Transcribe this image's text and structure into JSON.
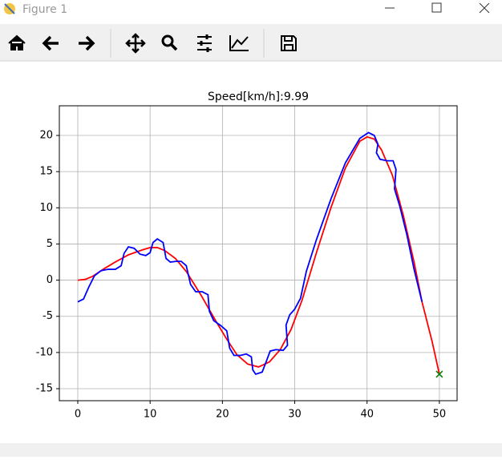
{
  "window": {
    "title": "Figure 1"
  },
  "chart_data": {
    "type": "line",
    "title": "Speed[km/h]:9.99",
    "xlim": [
      -2.55,
      52.45
    ],
    "ylim": [
      -16.66,
      24.1
    ],
    "xticks": [
      0,
      10,
      20,
      30,
      40,
      50
    ],
    "yticks": [
      -15,
      -10,
      -5,
      0,
      5,
      10,
      15,
      20
    ],
    "grid": true,
    "series": [
      {
        "color": "#ff0000",
        "x": [
          0,
          1,
          2,
          3.5,
          5,
          7,
          9,
          10,
          11,
          12,
          13.5,
          15,
          17,
          19,
          20.5,
          22,
          23.5,
          25,
          26.5,
          28,
          29.5,
          31,
          33,
          35,
          37,
          39,
          40,
          41,
          42,
          43.5,
          45,
          46.5,
          47.6,
          49,
          50
        ],
        "values": [
          0,
          0.1,
          0.5,
          1.5,
          2.4,
          3.5,
          4.2,
          4.5,
          4.5,
          4.1,
          3,
          1.2,
          -2,
          -5.5,
          -8,
          -10.3,
          -11.6,
          -12,
          -11.3,
          -9.6,
          -6.8,
          -2.8,
          3.8,
          10,
          15.5,
          19.2,
          19.8,
          19.5,
          18,
          14.5,
          9,
          2.5,
          -3,
          -8.5,
          -13
        ]
      },
      {
        "color": "#0000ff",
        "x": [
          0,
          0.8,
          1.5,
          2.3,
          3.2,
          4.2,
          5.2,
          6,
          6.4,
          7,
          7.8,
          8.6,
          9.4,
          10,
          10.4,
          11,
          11.8,
          12.2,
          12.8,
          13.6,
          14.3,
          15,
          15.3,
          15.6,
          16.3,
          17.2,
          18,
          18.2,
          18.8,
          19.8,
          20.6,
          21,
          21.6,
          22.5,
          23.3,
          24,
          24.2,
          24.6,
          25.5,
          26,
          26.6,
          27.4,
          28.4,
          29,
          28.8,
          29.3,
          30,
          30.8,
          31.6,
          33,
          35,
          37,
          39,
          40.2,
          41,
          41.5,
          41.3,
          41.8,
          42.8,
          43.6,
          44,
          43.8,
          44.5,
          45.5,
          46.5,
          47.6
        ],
        "values": [
          -3,
          -2.6,
          -1,
          0.6,
          1.3,
          1.5,
          1.5,
          2,
          3.7,
          4.6,
          4.4,
          3.6,
          3.4,
          3.8,
          5.2,
          5.7,
          5.2,
          3,
          2.5,
          2.6,
          2.6,
          2,
          0.7,
          -0.6,
          -1.6,
          -1.6,
          -2,
          -4.3,
          -5.6,
          -6.3,
          -7,
          -9.4,
          -10.4,
          -10.4,
          -10.2,
          -10.6,
          -12.4,
          -13,
          -12.7,
          -11.4,
          -9.8,
          -9.6,
          -9.7,
          -9,
          -6.2,
          -4.8,
          -4,
          -2.5,
          1.2,
          5.6,
          11.2,
          16.2,
          19.6,
          20.4,
          20,
          18.8,
          17.6,
          16.7,
          16.5,
          16.5,
          15.3,
          12.6,
          10.3,
          6.3,
          1.5,
          -3
        ]
      },
      {
        "color": "#008000",
        "marker": "x",
        "x": [
          50
        ],
        "values": [
          -13
        ]
      }
    ]
  }
}
